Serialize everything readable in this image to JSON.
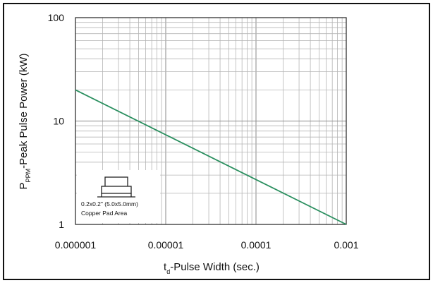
{
  "chart_data": {
    "type": "line",
    "title": "",
    "xlabel": {
      "main": "t",
      "sub": "d",
      "rest": "-Pulse Width (sec.)"
    },
    "ylabel": {
      "main": "P",
      "sub": "PPM",
      "rest": "-Peak Pulse Power (kW)"
    },
    "x_scale": "log",
    "y_scale": "log",
    "xlim": [
      1e-06,
      0.001
    ],
    "ylim": [
      1,
      100
    ],
    "x_ticks": [
      {
        "value": 1e-06,
        "label": "0.000001"
      },
      {
        "value": 1e-05,
        "label": "0.00001"
      },
      {
        "value": 0.0001,
        "label": "0.0001"
      },
      {
        "value": 0.001,
        "label": "0.001"
      }
    ],
    "y_ticks": [
      {
        "value": 1,
        "label": "1"
      },
      {
        "value": 10,
        "label": "10"
      },
      {
        "value": 100,
        "label": "100"
      }
    ],
    "grid": true,
    "series": [
      {
        "color": "#2a8f5f",
        "x": [
          1e-06,
          0.001
        ],
        "y": [
          20,
          1
        ]
      }
    ],
    "inset": {
      "line1": "0.2x0.2\" (5.0x5.0mm)",
      "line2": "Copper Pad Area",
      "icon": "smd-package-icon"
    }
  }
}
